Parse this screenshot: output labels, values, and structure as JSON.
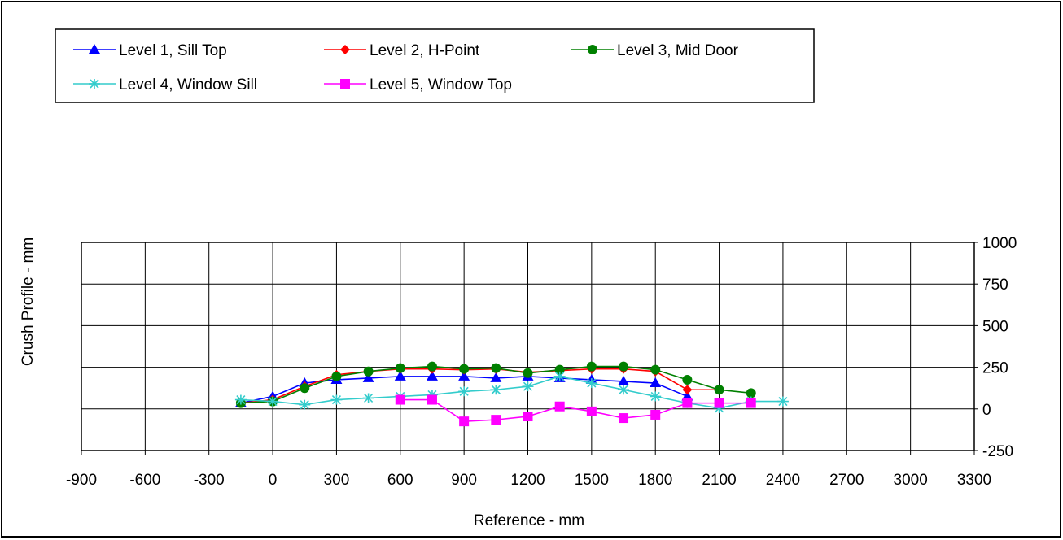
{
  "chart_data": {
    "type": "line",
    "title": "",
    "xlabel": "Reference - mm",
    "ylabel": "Crush Profile - mm",
    "xlim": [
      -900,
      3300
    ],
    "ylim": [
      -250,
      1000
    ],
    "x_ticks": [
      -900,
      -600,
      -300,
      0,
      300,
      600,
      900,
      1200,
      1500,
      1800,
      2100,
      2400,
      2700,
      3000,
      3300
    ],
    "y_ticks": [
      -250,
      0,
      250,
      500,
      750,
      1000
    ],
    "y_axis_side": "right",
    "grid": true,
    "legend_position": "top-left",
    "series": [
      {
        "name": "Level 1, Sill Top",
        "color": "#0000ff",
        "marker": "triangle",
        "x": [
          -150,
          0,
          150,
          300,
          450,
          600,
          750,
          900,
          1050,
          1200,
          1350,
          1500,
          1650,
          1800,
          1950
        ],
        "y": [
          35,
          75,
          155,
          175,
          185,
          195,
          195,
          195,
          185,
          195,
          185,
          175,
          165,
          155,
          75
        ]
      },
      {
        "name": "Level 2, H-Point",
        "color": "#ff0000",
        "marker": "diamond",
        "x": [
          -150,
          0,
          150,
          300,
          450,
          600,
          750,
          900,
          1050,
          1200,
          1350,
          1500,
          1650,
          1800,
          1950,
          2100
        ],
        "y": [
          35,
          55,
          135,
          205,
          225,
          240,
          240,
          235,
          240,
          220,
          230,
          240,
          240,
          225,
          115,
          115
        ]
      },
      {
        "name": "Level 3, Mid Door",
        "color": "#008000",
        "marker": "circle",
        "x": [
          -150,
          0,
          150,
          300,
          450,
          600,
          750,
          900,
          1050,
          1200,
          1350,
          1500,
          1650,
          1800,
          1950,
          2100,
          2250
        ],
        "y": [
          35,
          45,
          125,
          195,
          225,
          245,
          255,
          240,
          245,
          215,
          235,
          255,
          255,
          235,
          175,
          115,
          95
        ]
      },
      {
        "name": "Level 4, Window Sill",
        "color": "#33cccc",
        "marker": "asterisk",
        "x": [
          -150,
          0,
          150,
          300,
          450,
          600,
          750,
          900,
          1050,
          1200,
          1350,
          1500,
          1650,
          1800,
          1950,
          2100,
          2250,
          2400
        ],
        "y": [
          55,
          45,
          25,
          55,
          65,
          75,
          85,
          105,
          115,
          135,
          195,
          155,
          115,
          75,
          35,
          5,
          45,
          45
        ]
      },
      {
        "name": "Level 5, Window Top",
        "color": "#ff00ff",
        "marker": "square",
        "x": [
          600,
          750,
          900,
          1050,
          1200,
          1350,
          1500,
          1650,
          1800,
          1950,
          2100,
          2250
        ],
        "y": [
          55,
          55,
          -75,
          -65,
          -45,
          15,
          -15,
          -55,
          -35,
          35,
          35,
          35
        ]
      }
    ]
  }
}
